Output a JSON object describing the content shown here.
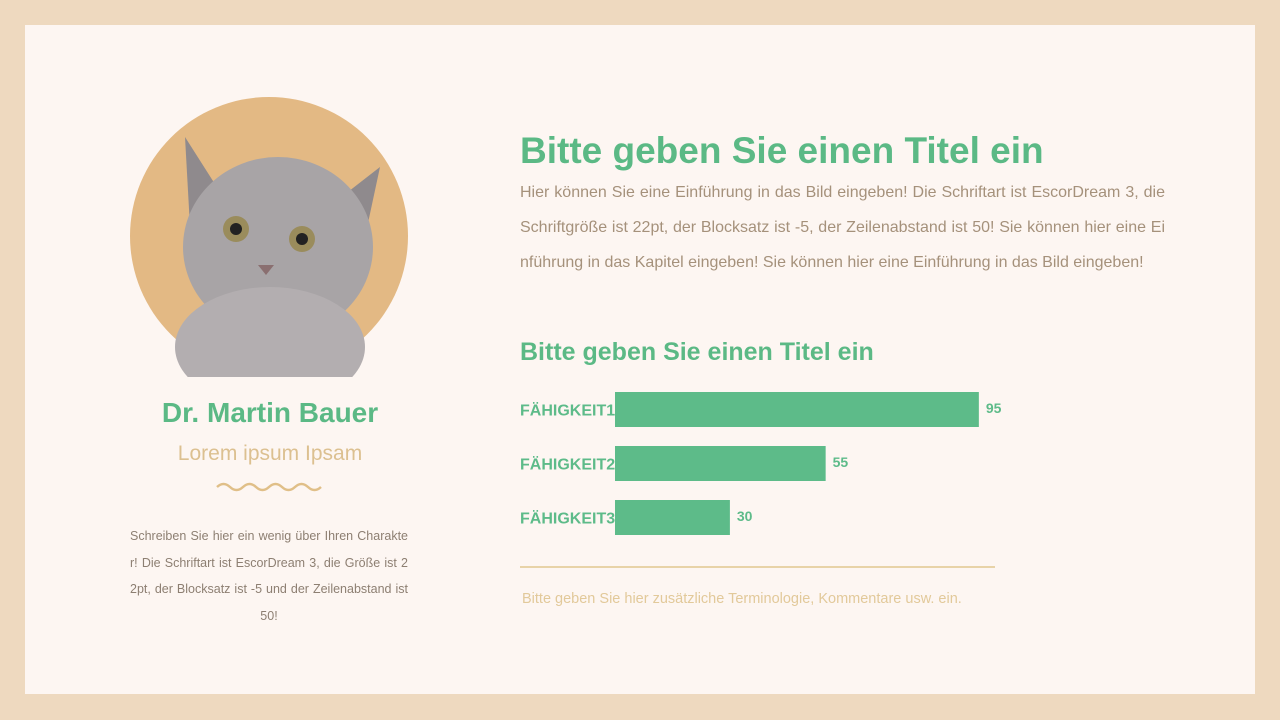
{
  "profile": {
    "name": "Dr. Martin Bauer",
    "subtitle": "Lorem ipsum Ipsam",
    "description": "Schreiben Sie hier ein wenig über Ihren Charakter! Die Schriftart ist EscorDream 3, die Größe ist 22pt, der Blocksatz ist -5 und der Zeilenabstand ist 50!"
  },
  "header": {
    "title": "Bitte geben Sie einen Titel ein",
    "intro": "Hier können Sie eine Einführung in das Bild eingeben! Die Schriftart ist EscorDream 3, die Schriftgröße ist 22pt, der Blocksatz ist -5, der Zeilenabstand ist 50! Sie können hier eine Einführung in das Kapitel eingeben! Sie können hier eine Einführung in das Bild eingeben!"
  },
  "chart_data": {
    "type": "bar",
    "orientation": "horizontal",
    "title": "Bitte geben Sie einen Titel ein",
    "categories": [
      "FÄHIGKEIT1",
      "FÄHIGKEIT2",
      "FÄHIGKEIT3"
    ],
    "values": [
      95,
      55,
      30
    ],
    "color": "#5dbb89"
  },
  "footer": {
    "note": "Bitte geben Sie hier zusätzliche Terminologie, Kommentare usw. ein."
  }
}
